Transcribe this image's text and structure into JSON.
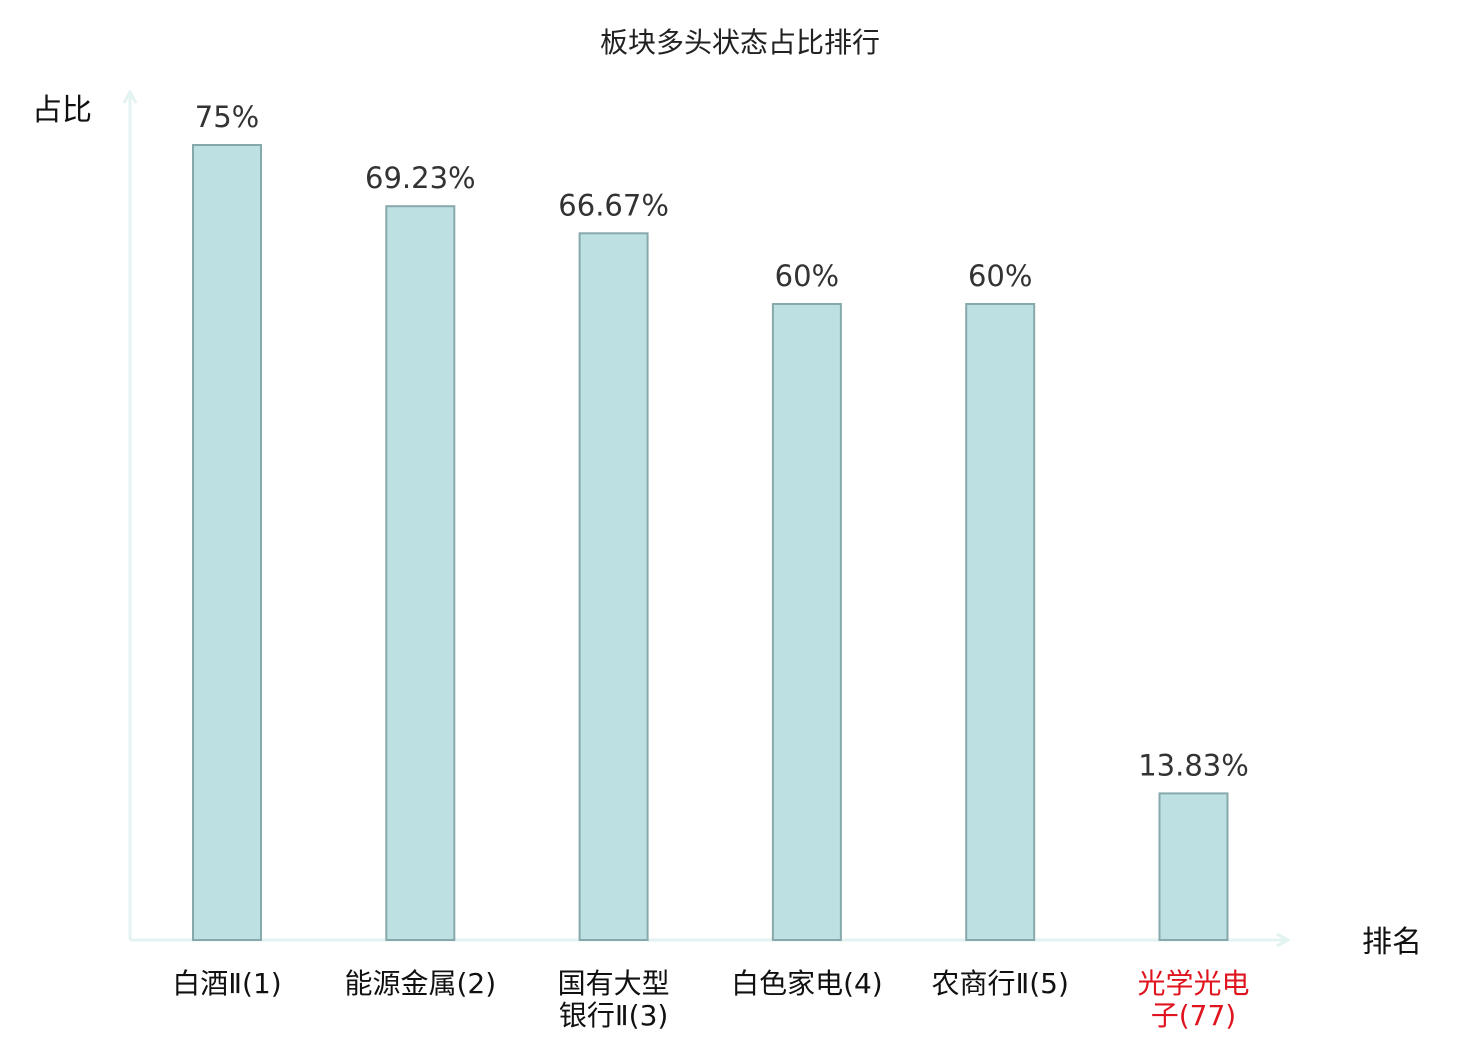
{
  "chart_data": {
    "type": "bar",
    "title": "板块多头状态占比排行",
    "ylabel": "占比",
    "xlabel": "排名",
    "ylim": [
      0,
      75
    ],
    "categories": [
      {
        "lines": [
          "白酒Ⅱ(1)"
        ],
        "highlight": false
      },
      {
        "lines": [
          "能源金属(2)"
        ],
        "highlight": false
      },
      {
        "lines": [
          "国有大型",
          "银行Ⅱ(3)"
        ],
        "highlight": false
      },
      {
        "lines": [
          "白色家电(4)"
        ],
        "highlight": false
      },
      {
        "lines": [
          "农商行Ⅱ(5)"
        ],
        "highlight": false
      },
      {
        "lines": [
          "光学光电",
          "子(77)"
        ],
        "highlight": true
      }
    ],
    "values": [
      75,
      69.23,
      66.67,
      60,
      60,
      13.83
    ],
    "value_labels": [
      "75%",
      "69.23%",
      "66.67%",
      "60%",
      "60%",
      "13.83%"
    ],
    "grid": false,
    "colors": {
      "bar_fill": "#bde0e3",
      "bar_stroke": "#88a9ac",
      "axis": "#e2f3f1",
      "highlight": "#e0141e"
    }
  }
}
